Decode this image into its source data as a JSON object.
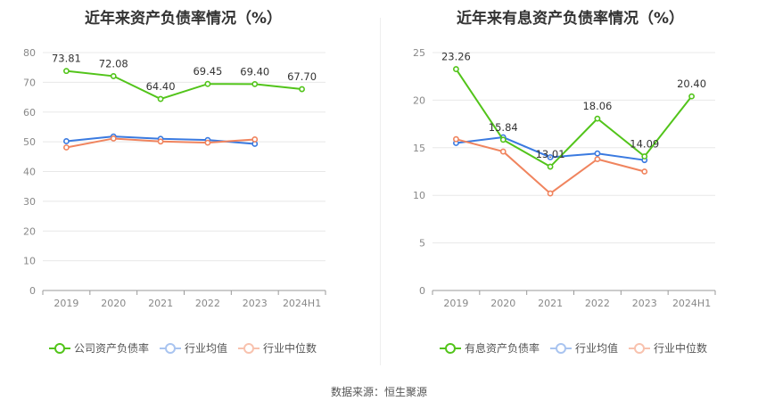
{
  "source_text": "数据来源：恒生聚源",
  "chart_data": [
    {
      "type": "line",
      "title": "近年来资产负债率情况（%）",
      "categories": [
        "2019",
        "2020",
        "2021",
        "2022",
        "2023",
        "2024H1"
      ],
      "ylim": [
        0,
        80
      ],
      "yticks": [
        0,
        10,
        20,
        30,
        40,
        50,
        60,
        70,
        80
      ],
      "grid": true,
      "legend_position": "bottom",
      "series": [
        {
          "name": "公司资产负债率",
          "color": "#52c41a",
          "values": [
            73.81,
            72.08,
            64.4,
            69.45,
            69.4,
            67.7
          ],
          "labels": [
            "73.81",
            "72.08",
            "64.40",
            "69.45",
            "69.40",
            "67.70"
          ]
        },
        {
          "name": "行业均值",
          "color": "#3a7ae0",
          "values": [
            50.2,
            51.8,
            51.0,
            50.6,
            49.3,
            null
          ]
        },
        {
          "name": "行业中位数",
          "color": "#f0845e",
          "values": [
            48.1,
            51.1,
            50.1,
            49.7,
            50.8,
            null
          ]
        }
      ]
    },
    {
      "type": "line",
      "title": "近年来有息资产负债率情况（%）",
      "categories": [
        "2019",
        "2020",
        "2021",
        "2022",
        "2023",
        "2024H1"
      ],
      "ylim": [
        0,
        25
      ],
      "yticks": [
        0,
        5,
        10,
        15,
        20,
        25
      ],
      "grid": true,
      "legend_position": "bottom",
      "series": [
        {
          "name": "有息资产负债率",
          "color": "#52c41a",
          "values": [
            23.26,
            15.84,
            13.01,
            18.06,
            14.09,
            20.4
          ],
          "labels": [
            "23.26",
            "15.84",
            "13.01",
            "18.06",
            "14.09",
            "20.40"
          ]
        },
        {
          "name": "行业均值",
          "color": "#3a7ae0",
          "values": [
            15.5,
            16.1,
            14.0,
            14.4,
            13.7,
            null
          ]
        },
        {
          "name": "行业中位数",
          "color": "#f0845e",
          "values": [
            15.9,
            14.6,
            10.2,
            13.8,
            12.5,
            null
          ]
        }
      ]
    }
  ]
}
